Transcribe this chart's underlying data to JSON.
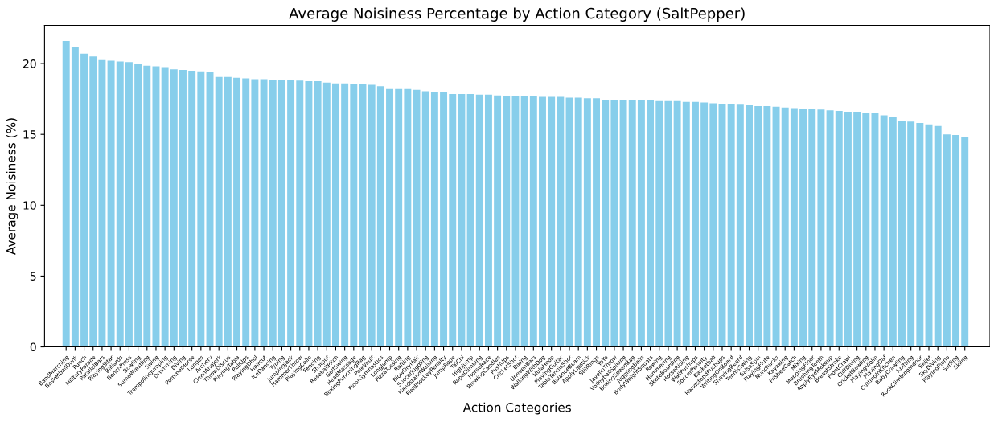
{
  "chart_data": {
    "type": "bar",
    "title": "Average Noisiness Percentage by Action Category (SaltPepper)",
    "xlabel": "Action Categories",
    "ylabel": "Average Noisiness (%)",
    "categories": [
      "BandMarching",
      "BasketballDunk",
      "Punch",
      "MilitaryParade",
      "ParallelBars",
      "PlayingSitar",
      "Billiards",
      "BenchPress",
      "Bowling",
      "SumoWrestling",
      "Swing",
      "TrampolineJumping",
      "Drumming",
      "Diving",
      "PommelHorse",
      "Lunges",
      "Archery",
      "CleanAndJerk",
      "ThrowDiscus",
      "PlayingTabla",
      "PullUps",
      "PlayingDhol",
      "Haircut",
      "IceDancing",
      "Typing",
      "JumpingJack",
      "HammerThrow",
      "PlayingCello",
      "Fencing",
      "Shotput",
      "BaseballPitch",
      "GolfSwing",
      "HeadMassage",
      "BoxingPunchingBag",
      "PoleVault",
      "FloorGymnastics",
      "LongJump",
      "PizzaTossing",
      "Rafting",
      "BlowDryHair",
      "SoccerJuggling",
      "HandstandWalking",
      "FieldHockeyPenalty",
      "JumpRope",
      "TaiChi",
      "HighJump",
      "RopeClimbing",
      "HorseRace",
      "BlowingCandles",
      "PushUps",
      "CricketShot",
      "Biking",
      "UnevenBars",
      "WalkingWithDog",
      "HulaHoop",
      "PlayingGuitar",
      "TableTennisShot",
      "BalanceBeam",
      "ApplyLipstick",
      "StillRings",
      "YoYo",
      "JavelinThrow",
      "VolleyballSpiking",
      "BoxingSpeedBag",
      "JugglingBalls",
      "BodyWeightSquats",
      "Rowing",
      "Hammering",
      "SkateBoarding",
      "HorseRiding",
      "WallPushups",
      "SoccerPenalty",
      "Basketball",
      "HandstandPushups",
      "WritingOnBoard",
      "ShavingBeard",
      "TennisSwing",
      "SalsaSpin",
      "PlayingFlute",
      "Nunchucks",
      "Kayaking",
      "FrisbeeCatch",
      "Mixing",
      "MoppingFloor",
      "BrushingTeeth",
      "ApplyEyeMakeup",
      "BreastStroke",
      "FrontCrawl",
      "CliffDiving",
      "CricketBowling",
      "PlayingViolin",
      "PlayingDaf",
      "CuttingInKitchen",
      "BabyCrawling",
      "Knitting",
      "RockClimbingIndoor",
      "Skijet",
      "SkyDiving",
      "PlayingPiano",
      "Surfing",
      "Skiing"
    ],
    "values": [
      21.6,
      21.2,
      20.7,
      20.5,
      20.25,
      20.2,
      20.15,
      20.1,
      19.95,
      19.85,
      19.8,
      19.75,
      19.6,
      19.55,
      19.5,
      19.45,
      19.4,
      19.05,
      19.05,
      19.0,
      18.95,
      18.9,
      18.9,
      18.85,
      18.85,
      18.85,
      18.8,
      18.75,
      18.75,
      18.65,
      18.6,
      18.6,
      18.55,
      18.55,
      18.5,
      18.4,
      18.2,
      18.2,
      18.2,
      18.15,
      18.05,
      18.0,
      18.0,
      17.85,
      17.85,
      17.85,
      17.8,
      17.8,
      17.75,
      17.7,
      17.7,
      17.7,
      17.7,
      17.65,
      17.65,
      17.65,
      17.6,
      17.6,
      17.55,
      17.55,
      17.45,
      17.45,
      17.45,
      17.4,
      17.4,
      17.4,
      17.35,
      17.35,
      17.35,
      17.3,
      17.3,
      17.25,
      17.2,
      17.15,
      17.15,
      17.1,
      17.05,
      17.0,
      17.0,
      16.95,
      16.9,
      16.85,
      16.8,
      16.8,
      16.75,
      16.7,
      16.65,
      16.6,
      16.6,
      16.55,
      16.5,
      16.35,
      16.25,
      15.95,
      15.9,
      15.8,
      15.7,
      15.6,
      15.0,
      14.95,
      14.8
    ],
    "color": "#87ceeb",
    "ylim": [
      0,
      22.7
    ],
    "yticks": [
      0,
      5,
      10,
      15,
      20
    ],
    "grid": false,
    "legend": false
  }
}
